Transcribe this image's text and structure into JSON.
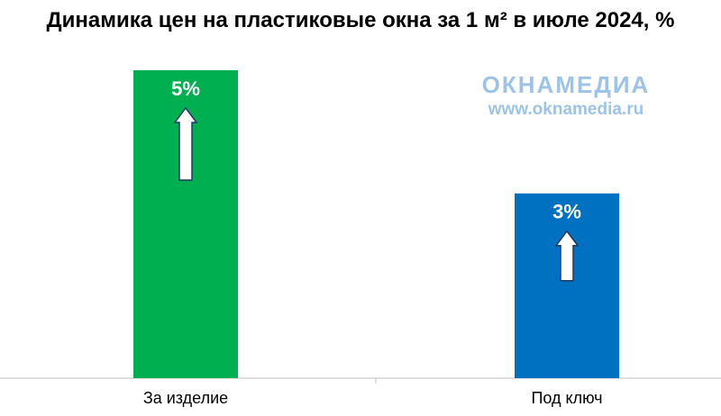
{
  "chart_data": {
    "type": "bar",
    "title": "Динамика цен на пластиковые окна за 1 м² в июле 2024, %",
    "categories": [
      "За изделие",
      "Под ключ"
    ],
    "values": [
      5,
      3
    ],
    "value_labels": [
      "5%",
      "3%"
    ],
    "colors": [
      "#00b050",
      "#0070c0"
    ],
    "ylim": [
      0,
      5
    ],
    "watermark": {
      "brand": "ОКНАМЕДИА",
      "url": "www.oknamedia.ru"
    }
  }
}
